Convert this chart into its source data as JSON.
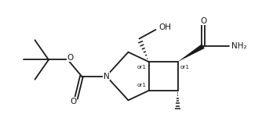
{
  "bg_color": "#ffffff",
  "line_color": "#1a1a1a",
  "lw": 1.3,
  "figsize": [
    3.34,
    1.6
  ],
  "dpi": 100,
  "xlim": [
    0.0,
    9.5
  ],
  "ylim": [
    0.5,
    5.0
  ]
}
